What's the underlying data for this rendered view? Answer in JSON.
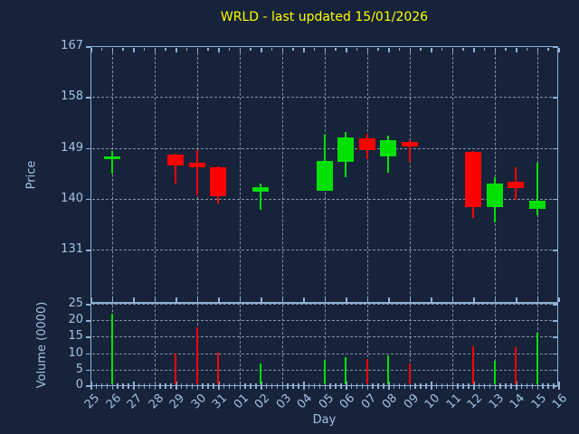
{
  "title": {
    "text": "WRLD - last updated 15/01/2026"
  },
  "colors": {
    "background": "#16233a",
    "frame": "#8fb0d4",
    "tick_text": "#a5c1e1",
    "grid": "#98a4b0",
    "title": "#ffff00",
    "up": "#00e000",
    "down": "#ff0000"
  },
  "chart_data": {
    "type": "candlestick-with-volume",
    "title": "WRLD - last updated 15/01/2026",
    "xlabel": "Day",
    "x_tick_labels": [
      "25",
      "26",
      "27",
      "28",
      "29",
      "30",
      "31",
      "01",
      "02",
      "03",
      "04",
      "05",
      "06",
      "07",
      "08",
      "09",
      "10",
      "11",
      "12",
      "13",
      "14",
      "15",
      "16"
    ],
    "grid_day_indices": [
      1,
      3,
      5,
      7,
      9,
      11,
      13,
      15,
      17,
      19,
      21
    ],
    "price_panel": {
      "ylabel": "Price",
      "ytick_labels": [
        "167",
        "158",
        "149",
        "140",
        "131"
      ],
      "yticks": [
        167,
        158,
        149,
        140,
        131
      ],
      "ylim": [
        121.6,
        167
      ],
      "grid": "dashed"
    },
    "volume_panel": {
      "ylabel": "Volume (0000)",
      "ytick_labels": [
        "25",
        "20",
        "15",
        "10",
        "5",
        "0"
      ],
      "yticks": [
        25,
        20,
        15,
        10,
        5,
        0
      ],
      "ylim": [
        0,
        25.3
      ],
      "grid": "dashed"
    },
    "candles": [
      {
        "day": "26",
        "index": 1,
        "open": 147.0,
        "high": 148.4,
        "low": 144.4,
        "close": 147.5,
        "volume": 22.1,
        "direction": "up"
      },
      {
        "day": "29",
        "index": 4,
        "open": 147.8,
        "high": 147.9,
        "low": 142.7,
        "close": 145.9,
        "volume": 10.0,
        "direction": "down"
      },
      {
        "day": "30",
        "index": 5,
        "open": 146.4,
        "high": 148.6,
        "low": 140.6,
        "close": 145.6,
        "volume": 18.0,
        "direction": "down"
      },
      {
        "day": "31",
        "index": 6,
        "open": 145.6,
        "high": 145.7,
        "low": 139.2,
        "close": 140.4,
        "volume": 10.2,
        "direction": "down"
      },
      {
        "day": "02",
        "index": 8,
        "open": 141.2,
        "high": 142.7,
        "low": 138.0,
        "close": 142.0,
        "volume": 6.9,
        "direction": "up"
      },
      {
        "day": "05",
        "index": 11,
        "open": 141.5,
        "high": 151.3,
        "low": 141.4,
        "close": 146.7,
        "volume": 8.0,
        "direction": "up"
      },
      {
        "day": "06",
        "index": 12,
        "open": 146.6,
        "high": 151.8,
        "low": 143.8,
        "close": 150.8,
        "volume": 8.9,
        "direction": "up"
      },
      {
        "day": "07",
        "index": 13,
        "open": 150.7,
        "high": 151.5,
        "low": 147.0,
        "close": 148.6,
        "volume": 8.2,
        "direction": "down"
      },
      {
        "day": "08",
        "index": 14,
        "open": 147.5,
        "high": 151.1,
        "low": 144.6,
        "close": 150.4,
        "volume": 9.3,
        "direction": "up"
      },
      {
        "day": "09",
        "index": 15,
        "open": 150.1,
        "high": 150.4,
        "low": 146.6,
        "close": 149.3,
        "volume": 6.9,
        "direction": "down"
      },
      {
        "day": "12",
        "index": 18,
        "open": 148.3,
        "high": 148.4,
        "low": 136.6,
        "close": 138.6,
        "volume": 12.0,
        "direction": "down"
      },
      {
        "day": "13",
        "index": 19,
        "open": 138.6,
        "high": 143.8,
        "low": 135.9,
        "close": 142.7,
        "volume": 7.8,
        "direction": "up"
      },
      {
        "day": "14",
        "index": 20,
        "open": 143.0,
        "high": 145.6,
        "low": 139.8,
        "close": 141.9,
        "volume": 11.7,
        "direction": "down"
      },
      {
        "day": "15",
        "index": 21,
        "open": 138.2,
        "high": 146.3,
        "low": 137.1,
        "close": 139.7,
        "volume": 16.2,
        "direction": "up"
      }
    ]
  }
}
